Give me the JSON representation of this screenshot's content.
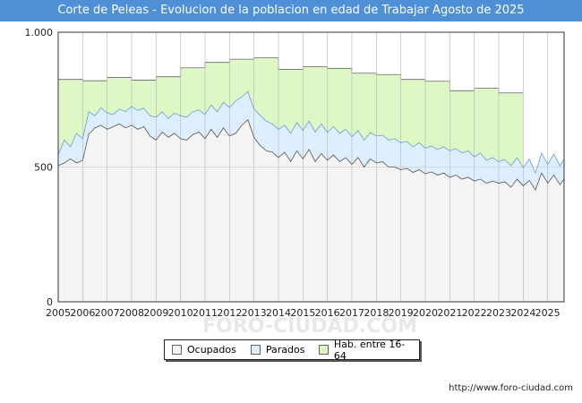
{
  "header": {
    "title": "Corte de Peleas - Evolucion de la poblacion en edad de Trabajar Agosto de 2025"
  },
  "footer": {
    "url": "http://www.foro-ciudad.com"
  },
  "watermark": "FORO-CIUDAD.COM",
  "colors": {
    "title_bg": "#4f8fd6",
    "hab_fill": "#ddf7c5",
    "hab_line": "#666666",
    "parados_fill": "#ddeeff",
    "parados_line": "#6f9ccf",
    "ocupados_fill": "#f4f4f4",
    "ocupados_line": "#555555"
  },
  "chart_data": {
    "type": "area",
    "title": "Corte de Peleas - Evolucion de la poblacion en edad de Trabajar Agosto de 2025",
    "xlabel": "",
    "ylabel": "",
    "xlim": [
      2005,
      2025.67
    ],
    "ylim": [
      0,
      1000
    ],
    "yticks": [
      0,
      500,
      1000
    ],
    "ytick_labels": [
      "0",
      "500",
      "1.000"
    ],
    "xtick_labels": [
      "2005",
      "2006",
      "2007",
      "2008",
      "2009",
      "2010",
      "2011",
      "2012",
      "2013",
      "2014",
      "2015",
      "2016",
      "2017",
      "2018",
      "2019",
      "2020",
      "2021",
      "2022",
      "2023",
      "2024",
      "2025"
    ],
    "legend": [
      "Ocupados",
      "Parados",
      "Hab. entre 16-64"
    ],
    "legend_position": "bottom-center",
    "series": [
      {
        "name": "Hab. entre 16-64",
        "annual": [
          {
            "year": 2005,
            "value": 825
          },
          {
            "year": 2006,
            "value": 820
          },
          {
            "year": 2007,
            "value": 832
          },
          {
            "year": 2008,
            "value": 822
          },
          {
            "year": 2009,
            "value": 835
          },
          {
            "year": 2010,
            "value": 868
          },
          {
            "year": 2011,
            "value": 888
          },
          {
            "year": 2012,
            "value": 900
          },
          {
            "year": 2013,
            "value": 905
          },
          {
            "year": 2014,
            "value": 862
          },
          {
            "year": 2015,
            "value": 872
          },
          {
            "year": 2016,
            "value": 866
          },
          {
            "year": 2017,
            "value": 848
          },
          {
            "year": 2018,
            "value": 843
          },
          {
            "year": 2019,
            "value": 825
          },
          {
            "year": 2020,
            "value": 818
          },
          {
            "year": 2021,
            "value": 783
          },
          {
            "year": 2022,
            "value": 792
          },
          {
            "year": 2023,
            "value": 775
          }
        ]
      },
      {
        "name": "Parados",
        "x": [
          2005.0,
          2005.25,
          2005.5,
          2005.75,
          2006.0,
          2006.25,
          2006.5,
          2006.75,
          2007.0,
          2007.25,
          2007.5,
          2007.75,
          2008.0,
          2008.25,
          2008.5,
          2008.75,
          2009.0,
          2009.25,
          2009.5,
          2009.75,
          2010.0,
          2010.25,
          2010.5,
          2010.75,
          2011.0,
          2011.25,
          2011.5,
          2011.75,
          2012.0,
          2012.25,
          2012.5,
          2012.75,
          2013.0,
          2013.25,
          2013.5,
          2013.75,
          2014.0,
          2014.25,
          2014.5,
          2014.75,
          2015.0,
          2015.25,
          2015.5,
          2015.75,
          2016.0,
          2016.25,
          2016.5,
          2016.75,
          2017.0,
          2017.25,
          2017.5,
          2017.75,
          2018.0,
          2018.25,
          2018.5,
          2018.75,
          2019.0,
          2019.25,
          2019.5,
          2019.75,
          2020.0,
          2020.25,
          2020.5,
          2020.75,
          2021.0,
          2021.25,
          2021.5,
          2021.75,
          2022.0,
          2022.25,
          2022.5,
          2022.75,
          2023.0,
          2023.25,
          2023.5,
          2023.75,
          2024.0,
          2024.25,
          2024.5,
          2024.75,
          2025.0,
          2025.25,
          2025.5,
          2025.67
        ],
        "values": [
          545,
          600,
          575,
          625,
          605,
          705,
          690,
          720,
          700,
          695,
          715,
          705,
          725,
          710,
          718,
          690,
          685,
          705,
          680,
          700,
          690,
          685,
          705,
          712,
          695,
          730,
          705,
          740,
          720,
          745,
          760,
          780,
          715,
          692,
          670,
          660,
          640,
          655,
          625,
          665,
          635,
          670,
          630,
          660,
          628,
          650,
          625,
          640,
          612,
          635,
          600,
          628,
          615,
          618,
          600,
          605,
          590,
          595,
          575,
          590,
          570,
          578,
          565,
          575,
          560,
          568,
          552,
          560,
          538,
          552,
          525,
          535,
          520,
          528,
          505,
          535,
          498,
          530,
          478,
          552,
          510,
          548,
          505,
          530
        ]
      },
      {
        "name": "Ocupados",
        "x": [
          2005.0,
          2005.25,
          2005.5,
          2005.75,
          2006.0,
          2006.25,
          2006.5,
          2006.75,
          2007.0,
          2007.25,
          2007.5,
          2007.75,
          2008.0,
          2008.25,
          2008.5,
          2008.75,
          2009.0,
          2009.25,
          2009.5,
          2009.75,
          2010.0,
          2010.25,
          2010.5,
          2010.75,
          2011.0,
          2011.25,
          2011.5,
          2011.75,
          2012.0,
          2012.25,
          2012.5,
          2012.75,
          2013.0,
          2013.25,
          2013.5,
          2013.75,
          2014.0,
          2014.25,
          2014.5,
          2014.75,
          2015.0,
          2015.25,
          2015.5,
          2015.75,
          2016.0,
          2016.25,
          2016.5,
          2016.75,
          2017.0,
          2017.25,
          2017.5,
          2017.75,
          2018.0,
          2018.25,
          2018.5,
          2018.75,
          2019.0,
          2019.25,
          2019.5,
          2019.75,
          2020.0,
          2020.25,
          2020.5,
          2020.75,
          2021.0,
          2021.25,
          2021.5,
          2021.75,
          2022.0,
          2022.25,
          2022.5,
          2022.75,
          2023.0,
          2023.25,
          2023.5,
          2023.75,
          2024.0,
          2024.25,
          2024.5,
          2024.75,
          2025.0,
          2025.25,
          2025.5,
          2025.67
        ],
        "values": [
          505,
          515,
          530,
          515,
          525,
          622,
          645,
          655,
          640,
          650,
          660,
          645,
          655,
          640,
          650,
          615,
          600,
          630,
          610,
          625,
          605,
          600,
          620,
          630,
          605,
          640,
          610,
          645,
          615,
          625,
          655,
          675,
          610,
          580,
          560,
          555,
          535,
          555,
          520,
          560,
          530,
          565,
          520,
          550,
          525,
          545,
          520,
          535,
          510,
          535,
          500,
          530,
          515,
          520,
          500,
          500,
          490,
          495,
          480,
          490,
          475,
          482,
          470,
          478,
          462,
          470,
          455,
          462,
          448,
          455,
          440,
          448,
          440,
          445,
          425,
          455,
          430,
          450,
          415,
          478,
          440,
          470,
          435,
          455
        ]
      }
    ]
  }
}
